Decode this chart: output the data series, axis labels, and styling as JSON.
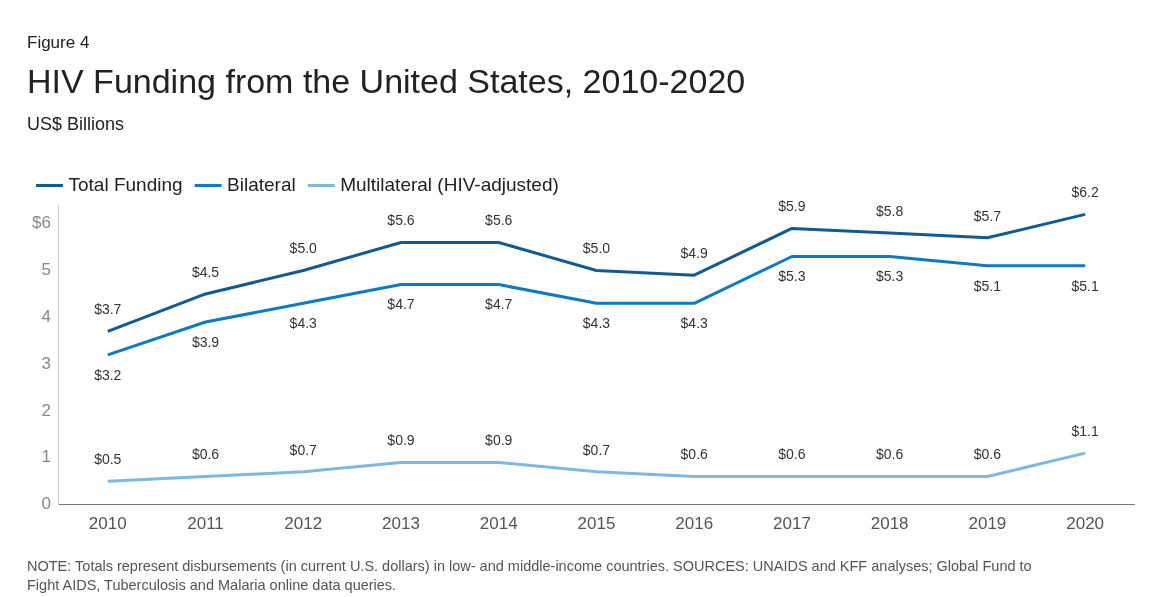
{
  "chart_data": {
    "type": "line",
    "title": "HIV Funding from the United States, 2010-2020",
    "subtitle": "US$ Billions",
    "annotations": [
      "Figure 4",
      "NOTE: Totals represent disbursements (in current U.S. dollars) in low- and middle-income countries. SOURCES: UNAIDS and KFF analyses; Global Fund to Fight AIDS, Tuberculosis and Malaria online data queries."
    ],
    "categories": [
      "2010",
      "2011",
      "2012",
      "2013",
      "2014",
      "2015",
      "2016",
      "2017",
      "2018",
      "2019",
      "2020"
    ],
    "series": [
      {
        "name": "Total Funding",
        "color": "#0f5b93",
        "values": [
          3.7,
          4.5,
          5.0,
          5.6,
          5.6,
          5.0,
          4.9,
          5.9,
          5.8,
          5.7,
          6.2
        ],
        "value_labels": [
          "$3.7",
          "$4.5",
          "$5.0",
          "$5.6",
          "$5.6",
          "$5.0",
          "$4.9",
          "$5.9",
          "$5.8",
          "$5.7",
          "$6.2"
        ]
      },
      {
        "name": "Bilateral",
        "color": "#0a7bc4",
        "values": [
          3.2,
          3.9,
          4.3,
          4.7,
          4.7,
          4.3,
          4.3,
          5.3,
          5.3,
          5.1,
          5.1
        ],
        "value_labels": [
          "$3.2",
          "$3.9",
          "$4.3",
          "$4.7",
          "$4.7",
          "$4.3",
          "$4.3",
          "$5.3",
          "$5.3",
          "$5.1",
          "$5.1"
        ]
      },
      {
        "name": "Multilateral (HIV-adjusted)",
        "color": "#7db9e3",
        "values": [
          0.5,
          0.6,
          0.7,
          0.9,
          0.9,
          0.7,
          0.6,
          0.6,
          0.6,
          0.6,
          1.1
        ],
        "value_labels": [
          "$0.5",
          "$0.6",
          "$0.7",
          "$0.9",
          "$0.9",
          "$0.7",
          "$0.6",
          "$0.6",
          "$0.6",
          "$0.6",
          "$1.1"
        ]
      }
    ],
    "ylim": [
      0,
      6.4
    ],
    "yticks": [
      0,
      1,
      2,
      3,
      4,
      5,
      {
        "value": 6,
        "label": "$6"
      }
    ],
    "grid": false,
    "legend": "top left",
    "marker": "none",
    "line_style": "solid"
  }
}
